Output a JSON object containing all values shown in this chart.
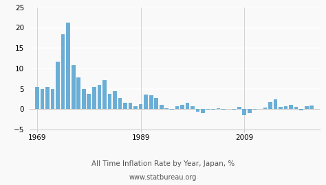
{
  "title": "All Time Inflation Rate by Year, Japan, %",
  "subtitle": "www.statbureau.org",
  "bar_color": "#6aaed6",
  "background_color": "#f9f9f9",
  "grid_color": "#ffffff",
  "spine_color": "#cccccc",
  "years": [
    1969,
    1970,
    1971,
    1972,
    1973,
    1974,
    1975,
    1976,
    1977,
    1978,
    1979,
    1980,
    1981,
    1982,
    1983,
    1984,
    1985,
    1986,
    1987,
    1988,
    1989,
    1990,
    1991,
    1992,
    1993,
    1994,
    1995,
    1996,
    1997,
    1998,
    1999,
    2000,
    2001,
    2002,
    2003,
    2004,
    2005,
    2006,
    2007,
    2008,
    2009,
    2010,
    2011,
    2012,
    2013,
    2014,
    2015,
    2016,
    2017,
    2018,
    2019,
    2020,
    2021,
    2022
  ],
  "values": [
    5.4,
    5.0,
    5.5,
    4.9,
    11.7,
    18.4,
    21.2,
    10.9,
    7.8,
    5.0,
    3.7,
    5.5,
    5.9,
    7.2,
    3.8,
    4.4,
    2.7,
    1.6,
    1.5,
    0.8,
    1.3,
    3.6,
    3.5,
    2.7,
    1.1,
    0.2,
    -0.1,
    0.8,
    1.0,
    1.5,
    0.7,
    -0.6,
    -0.9,
    -0.2,
    -0.2,
    0.2,
    -0.2,
    0.0,
    -0.1,
    0.6,
    -1.4,
    -0.9,
    -0.1,
    0.1,
    0.4,
    1.7,
    2.4,
    0.5,
    0.8,
    1.0,
    0.5,
    -0.3,
    0.7,
    0.9
  ],
  "ylim": [
    -5,
    25
  ],
  "yticks": [
    -5,
    0,
    5,
    10,
    15,
    20,
    25
  ],
  "xtick_years": [
    1969,
    1989,
    2009
  ],
  "title_fontsize": 7.5,
  "subtitle_fontsize": 7.0,
  "tick_fontsize": 7.5
}
